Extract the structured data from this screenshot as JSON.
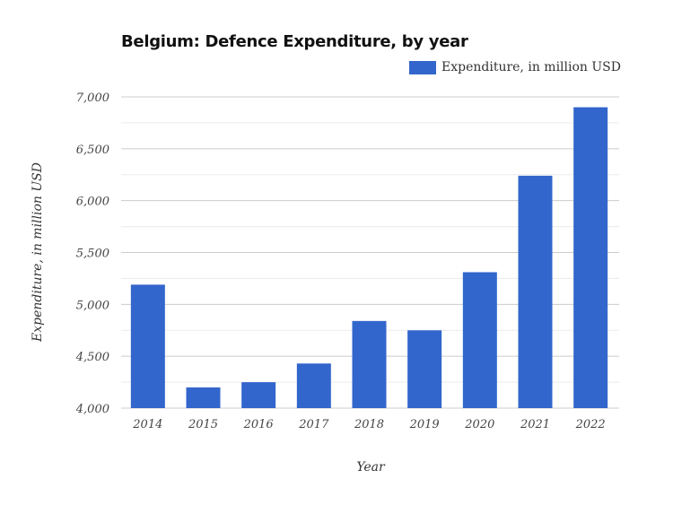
{
  "chart_data": {
    "type": "bar",
    "title": "Belgium: Defence Expenditure, by year",
    "xlabel": "Year",
    "ylabel": "Expenditure, in million USD",
    "categories": [
      "2014",
      "2015",
      "2016",
      "2017",
      "2018",
      "2019",
      "2020",
      "2021",
      "2022"
    ],
    "series": [
      {
        "name": "Expenditure, in million USD",
        "values": [
          5190,
          4200,
          4250,
          4430,
          4840,
          4750,
          5310,
          6240,
          6900
        ],
        "color": "#3366cc"
      }
    ],
    "ylim": [
      4000,
      7000
    ],
    "yticks": [
      "4,000",
      "4,500",
      "5,000",
      "5,500",
      "6,000",
      "6,500",
      "7,000"
    ],
    "grid": true,
    "legend": "top-right"
  }
}
